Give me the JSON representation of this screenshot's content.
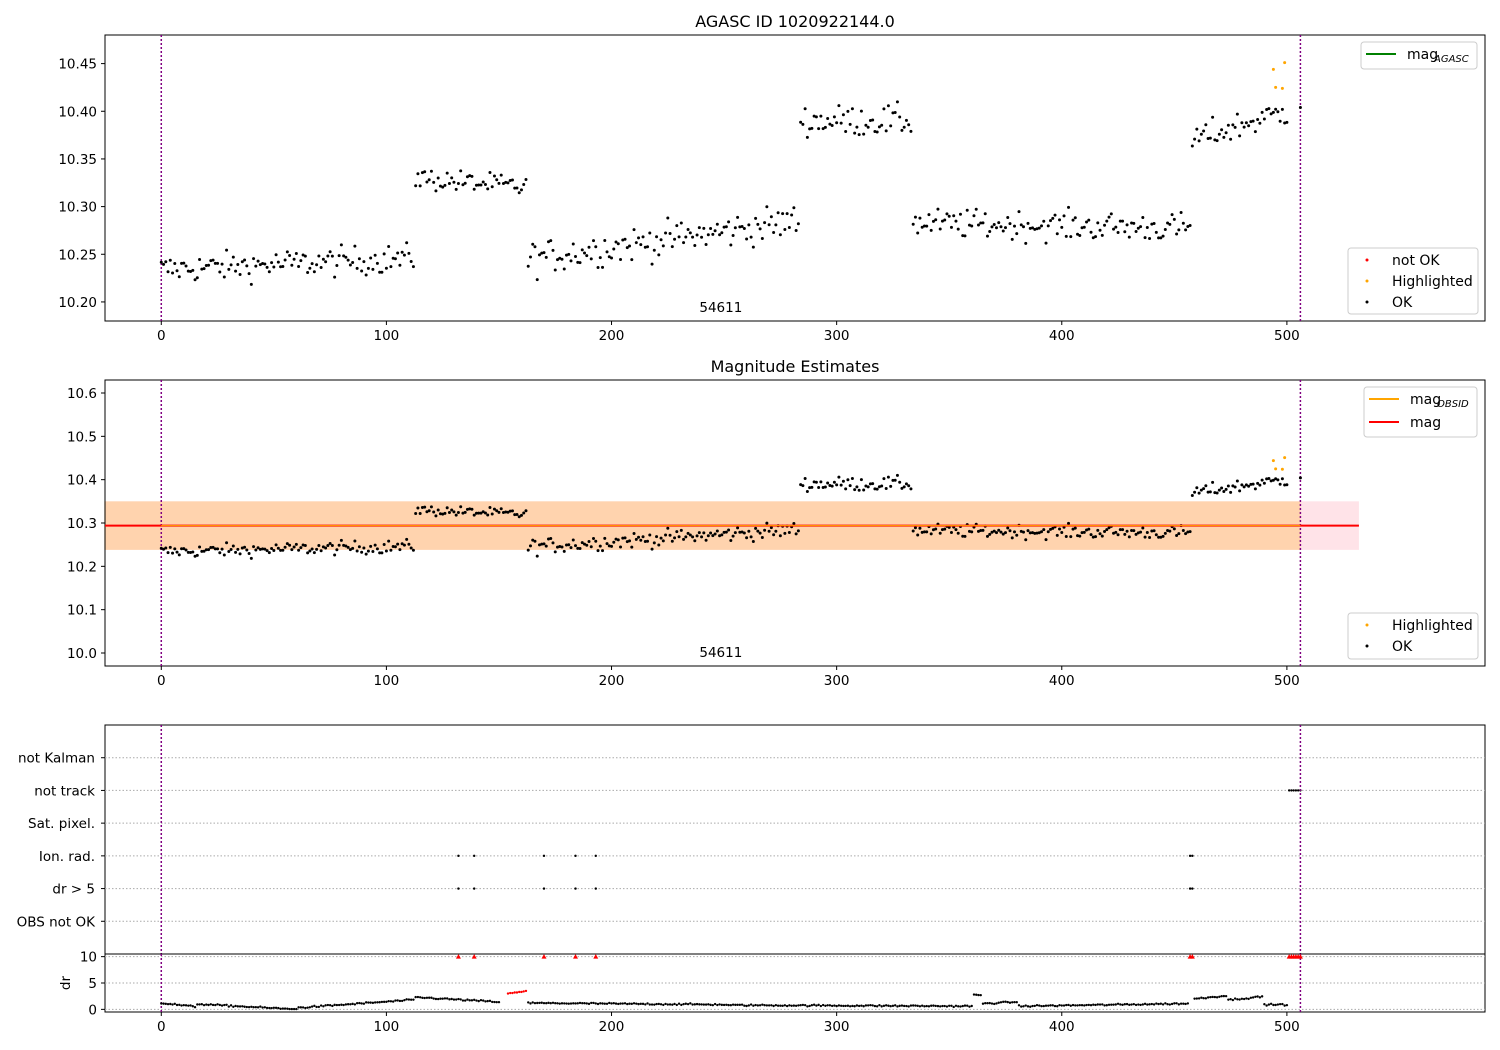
{
  "chart_data": [
    {
      "id": "agasc",
      "type": "scatter",
      "title": "AGASC ID 1020922144.0",
      "xlim": [
        -25,
        588
      ],
      "ylim": [
        10.18,
        10.48
      ],
      "xticks": [
        0,
        100,
        200,
        300,
        400,
        500
      ],
      "yticks": [
        10.2,
        10.25,
        10.3,
        10.35,
        10.4,
        10.45
      ],
      "ytick_decimals": 2,
      "obsid_boundaries": [
        0,
        506
      ],
      "obsid_label": {
        "text": "54611",
        "x": 253
      },
      "segments": [
        {
          "start": 0,
          "end": 112,
          "mean": 10.24,
          "noise": 0.015,
          "trend": 0.012
        },
        {
          "start": 113,
          "end": 162,
          "mean": 10.325,
          "noise": 0.012,
          "trend": -0.01
        },
        {
          "start": 163,
          "end": 283,
          "mean": 10.265,
          "noise": 0.018,
          "trend": 0.04
        },
        {
          "start": 284,
          "end": 333,
          "mean": 10.39,
          "noise": 0.016,
          "trend": 0.0
        },
        {
          "start": 334,
          "end": 457,
          "mean": 10.28,
          "noise": 0.015,
          "trend": -0.005
        },
        {
          "start": 458,
          "end": 500,
          "mean": 10.385,
          "noise": 0.015,
          "trend": 0.03
        }
      ],
      "highlighted_points": [
        {
          "x": 494,
          "y": 10.444
        },
        {
          "x": 495,
          "y": 10.425
        },
        {
          "x": 499,
          "y": 10.451
        },
        {
          "x": 498,
          "y": 10.424
        }
      ],
      "extra_ok_points": [
        {
          "x": 506,
          "y": 10.404
        }
      ],
      "legend_line": {
        "label": "mag",
        "subscript": "AGASC",
        "color": "#008000"
      },
      "legend_points": [
        {
          "label": "not OK",
          "color": "#ff0000"
        },
        {
          "label": "Highlighted",
          "color": "#ffa500"
        },
        {
          "label": "OK",
          "color": "#000000"
        }
      ]
    },
    {
      "id": "estimates",
      "type": "scatter",
      "title": "Magnitude Estimates",
      "xlim": [
        -25,
        588
      ],
      "ylim": [
        9.97,
        10.63
      ],
      "xticks": [
        0,
        100,
        200,
        300,
        400,
        500
      ],
      "yticks": [
        10.0,
        10.1,
        10.2,
        10.3,
        10.4,
        10.5,
        10.6
      ],
      "ytick_decimals": 1,
      "obsid_boundaries": [
        0,
        506
      ],
      "obsid_label": {
        "text": "54611",
        "x": 253
      },
      "mag": 10.294,
      "mag_band": [
        10.238,
        10.35
      ],
      "mag_obsid_band": {
        "x_range": [
          0,
          506
        ],
        "y_range": [
          10.238,
          10.35
        ]
      },
      "mag_line_x_range": [
        -25,
        532
      ],
      "legend_lines": [
        {
          "label": "mag",
          "subscript": "OBSID",
          "color": "#ffa500"
        },
        {
          "label": "mag",
          "subscript": "",
          "color": "#ff0000"
        }
      ],
      "legend_points": [
        {
          "label": "Highlighted",
          "color": "#ffa500"
        },
        {
          "label": "OK",
          "color": "#000000"
        }
      ]
    },
    {
      "id": "flags",
      "type": "scatter",
      "title": "",
      "xlim": [
        -25,
        588
      ],
      "categories": [
        "not Kalman",
        "not track",
        "Sat. pixel.",
        "Ion. rad.",
        "dr > 5",
        "OBS not OK"
      ],
      "flag_points": {
        "not track": [
          501,
          502,
          503,
          504,
          505,
          506
        ],
        "Ion. rad.": [
          132,
          139,
          170,
          184,
          193,
          457,
          458
        ],
        "dr > 5": [
          132,
          139,
          170,
          184,
          193,
          457,
          458
        ]
      },
      "obsid_boundaries": [
        0,
        506
      ]
    },
    {
      "id": "dr",
      "type": "scatter",
      "ylabel": "dr",
      "xlim": [
        -25,
        588
      ],
      "ylim": [
        -0.5,
        10.5
      ],
      "xticks": [
        0,
        100,
        200,
        300,
        400,
        500
      ],
      "yticks": [
        0,
        5,
        10
      ],
      "ytick_decimals": 0,
      "obsid_boundaries": [
        0,
        506
      ],
      "clip_value": 10,
      "clipped_points": [
        132,
        139,
        170,
        184,
        193,
        457,
        458,
        501,
        502,
        503,
        504,
        505,
        506
      ],
      "red_points": [
        {
          "x": 154,
          "y": 3.0
        },
        {
          "x": 155,
          "y": 3.1
        },
        {
          "x": 156,
          "y": 3.1
        },
        {
          "x": 157,
          "y": 3.2
        },
        {
          "x": 158,
          "y": 3.2
        },
        {
          "x": 159,
          "y": 3.3
        },
        {
          "x": 160,
          "y": 3.3
        },
        {
          "x": 161,
          "y": 3.4
        },
        {
          "x": 162,
          "y": 3.5
        }
      ],
      "dr_segments": [
        {
          "start": 0,
          "end": 15,
          "a": 1.2,
          "b": 0.5
        },
        {
          "start": 16,
          "end": 60,
          "a": 1.0,
          "b": 0.0
        },
        {
          "start": 61,
          "end": 112,
          "a": 0.3,
          "b": 1.8
        },
        {
          "start": 113,
          "end": 150,
          "a": 2.3,
          "b": 1.4
        },
        {
          "start": 163,
          "end": 250,
          "a": 1.2,
          "b": 0.9
        },
        {
          "start": 251,
          "end": 360,
          "a": 0.8,
          "b": 0.6
        },
        {
          "start": 361,
          "end": 364,
          "a": 2.8,
          "b": 2.6
        },
        {
          "start": 365,
          "end": 380,
          "a": 1.1,
          "b": 1.4
        },
        {
          "start": 381,
          "end": 456,
          "a": 0.6,
          "b": 1.1
        },
        {
          "start": 459,
          "end": 473,
          "a": 2.0,
          "b": 2.6
        },
        {
          "start": 474,
          "end": 489,
          "a": 1.8,
          "b": 2.4
        },
        {
          "start": 490,
          "end": 500,
          "a": 0.9,
          "b": 0.9
        }
      ]
    }
  ]
}
